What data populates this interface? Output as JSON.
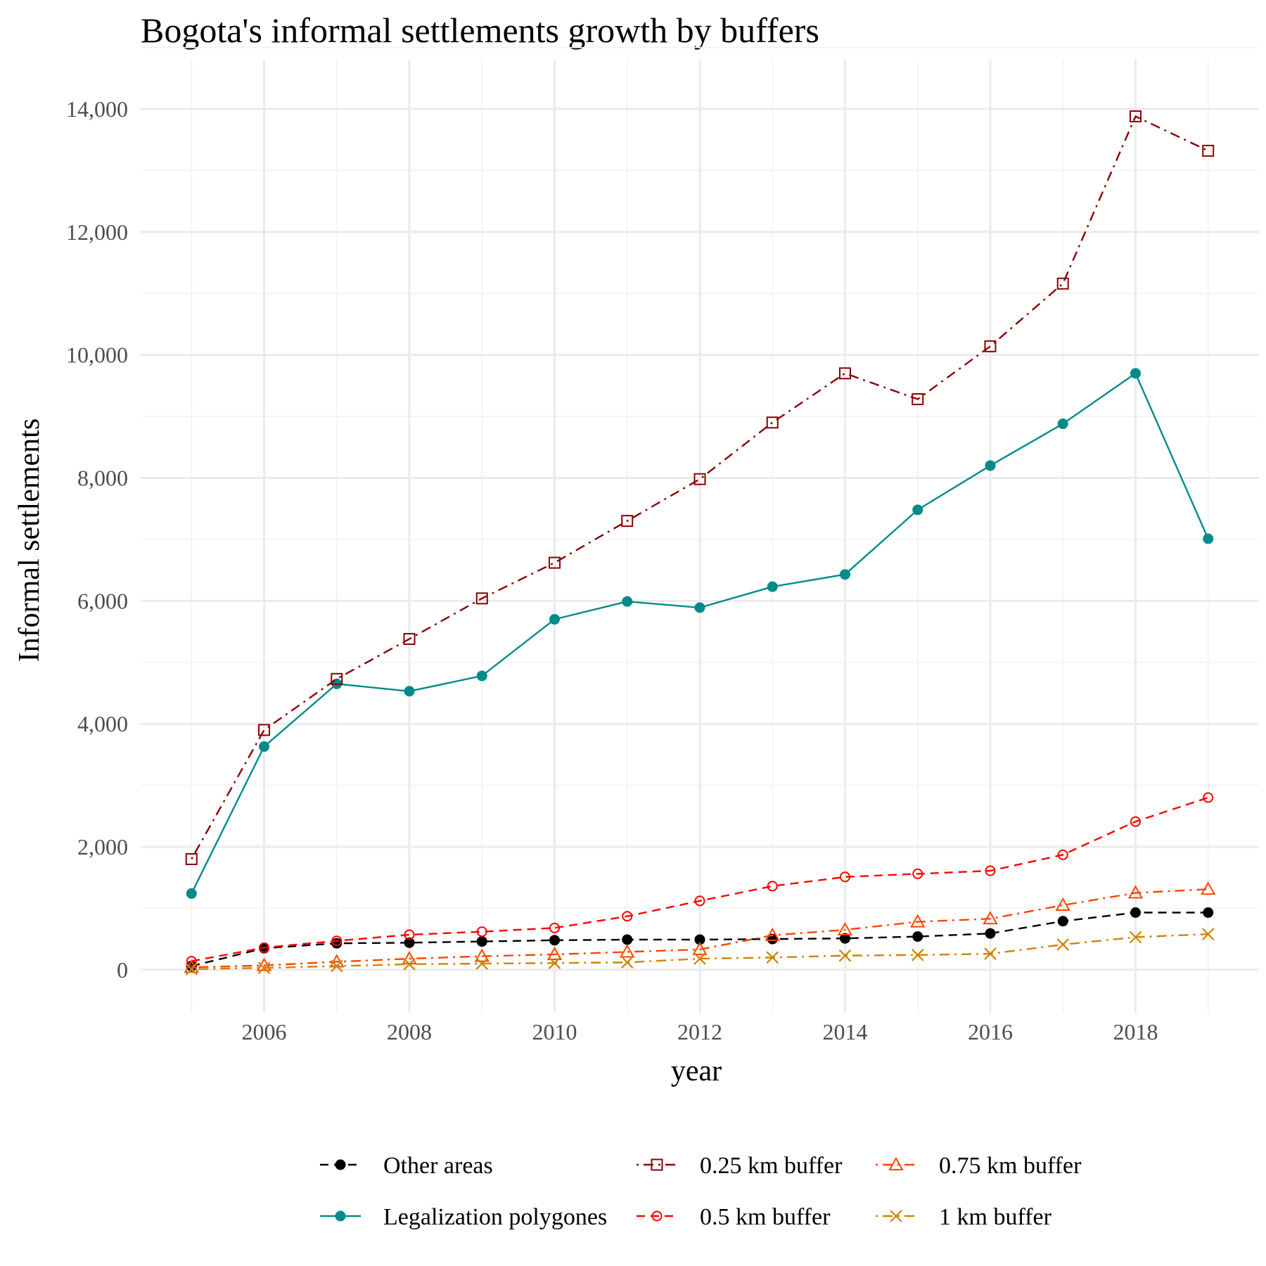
{
  "chart_data": {
    "type": "line",
    "title": "Bogota's informal settlements growth by buffers",
    "xlabel": "year",
    "ylabel": "Informal settlements",
    "xlim": [
      2004.3,
      2019.7
    ],
    "ylim": [
      -700,
      14800
    ],
    "x_ticks": [
      2006,
      2008,
      2010,
      2012,
      2014,
      2016,
      2018
    ],
    "x_tick_labels": [
      "2006",
      "2008",
      "2010",
      "2012",
      "2014",
      "2016",
      "2018"
    ],
    "y_ticks": [
      0,
      2000,
      4000,
      6000,
      8000,
      10000,
      12000,
      14000
    ],
    "y_tick_labels": [
      "0",
      "2,000",
      "4,000",
      "6,000",
      "8,000",
      "10,000",
      "12,000",
      "14,000"
    ],
    "grid": true,
    "legend_position": "bottom",
    "x": [
      2005,
      2006,
      2007,
      2008,
      2009,
      2010,
      2011,
      2012,
      2013,
      2014,
      2015,
      2016,
      2017,
      2018,
      2019
    ],
    "series": [
      {
        "name": "Other areas",
        "color": "#000000",
        "marker": "filled-circle",
        "dash": "dashed",
        "values": [
          60,
          350,
          430,
          440,
          460,
          480,
          490,
          490,
          500,
          510,
          540,
          590,
          790,
          930,
          930
        ]
      },
      {
        "name": "Legalization polygones",
        "color": "#008B8B",
        "marker": "filled-circle",
        "dash": "solid",
        "values": [
          1240,
          3630,
          4650,
          4530,
          4780,
          5700,
          5990,
          5890,
          6230,
          6430,
          7480,
          8200,
          8880,
          9700,
          7010
        ]
      },
      {
        "name": "0.25 km buffer",
        "color": "#8B0000",
        "marker": "open-square",
        "dash": "dotdash",
        "values": [
          1800,
          3900,
          4730,
          5380,
          6040,
          6620,
          7300,
          7980,
          8900,
          9700,
          9280,
          10140,
          11160,
          13880,
          13320
        ]
      },
      {
        "name": "0.5 km buffer",
        "color": "#FF0000",
        "marker": "open-circle",
        "dash": "dashed",
        "values": [
          140,
          360,
          470,
          570,
          620,
          680,
          870,
          1120,
          1360,
          1510,
          1560,
          1610,
          1870,
          2410,
          2800
        ]
      },
      {
        "name": "0.75 km buffer",
        "color": "#FF4500",
        "marker": "open-triangle",
        "dash": "dotdash",
        "values": [
          40,
          70,
          130,
          180,
          220,
          250,
          290,
          330,
          560,
          650,
          780,
          830,
          1050,
          1250,
          1310
        ]
      },
      {
        "name": "1 km buffer",
        "color": "#CD8500",
        "marker": "cross",
        "dash": "dotdash",
        "values": [
          10,
          30,
          60,
          90,
          100,
          110,
          120,
          180,
          200,
          230,
          240,
          260,
          410,
          530,
          580
        ]
      }
    ]
  }
}
